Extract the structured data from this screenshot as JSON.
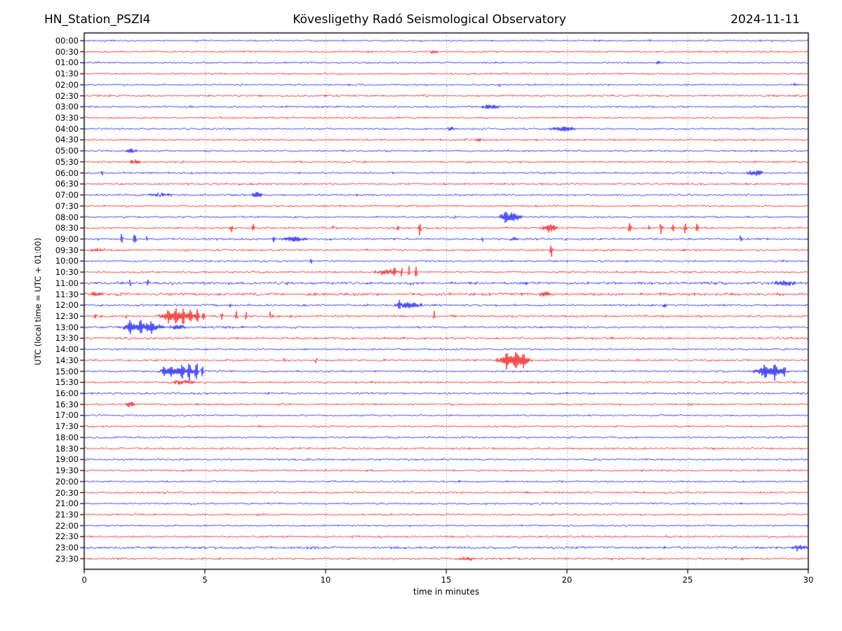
{
  "chart_data": {
    "type": "line",
    "subtype": "helicorder-seismogram",
    "title_left": "HN_Station_PSZI4",
    "title_center": "Kövesligethy Radó Seismological Observatory",
    "title_right": "2024-11-11",
    "xlabel": "time in minutes",
    "ylabel": "UTC (local time = UTC + 01:00)",
    "x_range": [
      0,
      30
    ],
    "x_ticks": [
      0,
      5,
      10,
      15,
      20,
      25,
      30
    ],
    "x_gridlines": [
      5,
      10,
      15,
      20,
      25
    ],
    "minutes_per_row": 30,
    "grid_on": true,
    "grid_color": "#777777",
    "axis_color": "#000000",
    "trace_colors": {
      "even_rows": "#0000ee",
      "odd_rows": "#ee0000"
    },
    "rows": [
      {
        "label": "00:00",
        "noise": 0.9
      },
      {
        "label": "00:30",
        "noise": 1.0
      },
      {
        "label": "01:00",
        "noise": 0.9
      },
      {
        "label": "01:30",
        "noise": 1.0
      },
      {
        "label": "02:00",
        "noise": 0.9
      },
      {
        "label": "02:30",
        "noise": 1.05
      },
      {
        "label": "03:00",
        "noise": 1.0
      },
      {
        "label": "03:30",
        "noise": 1.0
      },
      {
        "label": "04:00",
        "noise": 1.0
      },
      {
        "label": "04:30",
        "noise": 1.1
      },
      {
        "label": "05:00",
        "noise": 1.0
      },
      {
        "label": "05:30",
        "noise": 1.05
      },
      {
        "label": "06:00",
        "noise": 1.0
      },
      {
        "label": "06:30",
        "noise": 1.1
      },
      {
        "label": "07:00",
        "noise": 1.0
      },
      {
        "label": "07:30",
        "noise": 1.05
      },
      {
        "label": "08:00",
        "noise": 1.0
      },
      {
        "label": "08:30",
        "noise": 1.1
      },
      {
        "label": "09:00",
        "noise": 1.1
      },
      {
        "label": "09:30",
        "noise": 1.15
      },
      {
        "label": "10:00",
        "noise": 1.0
      },
      {
        "label": "10:30",
        "noise": 1.05
      },
      {
        "label": "11:00",
        "noise": 1.45
      },
      {
        "label": "11:30",
        "noise": 1.55
      },
      {
        "label": "12:00",
        "noise": 1.1
      },
      {
        "label": "12:30",
        "noise": 1.2
      },
      {
        "label": "13:00",
        "noise": 1.15
      },
      {
        "label": "13:30",
        "noise": 1.25
      },
      {
        "label": "14:00",
        "noise": 1.0
      },
      {
        "label": "14:30",
        "noise": 1.1
      },
      {
        "label": "15:00",
        "noise": 1.05
      },
      {
        "label": "15:30",
        "noise": 1.1
      },
      {
        "label": "16:00",
        "noise": 1.1
      },
      {
        "label": "16:30",
        "noise": 1.05
      },
      {
        "label": "17:00",
        "noise": 0.95
      },
      {
        "label": "17:30",
        "noise": 1.0
      },
      {
        "label": "18:00",
        "noise": 1.0
      },
      {
        "label": "18:30",
        "noise": 1.15
      },
      {
        "label": "19:00",
        "noise": 1.05
      },
      {
        "label": "19:30",
        "noise": 1.0
      },
      {
        "label": "20:00",
        "noise": 0.95
      },
      {
        "label": "20:30",
        "noise": 1.1
      },
      {
        "label": "21:00",
        "noise": 0.95
      },
      {
        "label": "21:30",
        "noise": 1.0
      },
      {
        "label": "22:00",
        "noise": 0.9
      },
      {
        "label": "22:30",
        "noise": 1.1
      },
      {
        "label": "23:00",
        "noise": 1.35
      },
      {
        "label": "23:30",
        "noise": 1.1
      }
    ],
    "events": [
      {
        "row": "00:30",
        "t": 14.5,
        "dur": 0.4,
        "amp": 2.2,
        "kind": "burst"
      },
      {
        "row": "01:00",
        "t": 23.8,
        "dur": 0.4,
        "amp": 2.0,
        "kind": "burst"
      },
      {
        "row": "02:00",
        "t": 17.2,
        "dur": 0.12,
        "amp": 3.5,
        "kind": "spike"
      },
      {
        "row": "02:00",
        "t": 29.5,
        "dur": 0.3,
        "amp": 2.0,
        "kind": "burst"
      },
      {
        "row": "03:00",
        "t": 16.85,
        "dur": 1.0,
        "amp": 3.5,
        "kind": "burst"
      },
      {
        "row": "04:00",
        "t": 15.2,
        "dur": 0.5,
        "amp": 2.5,
        "kind": "burst"
      },
      {
        "row": "04:00",
        "t": 19.8,
        "dur": 1.3,
        "amp": 3.5,
        "kind": "burst"
      },
      {
        "row": "04:30",
        "t": 16.3,
        "dur": 0.35,
        "amp": 2.0,
        "kind": "burst"
      },
      {
        "row": "05:00",
        "t": 1.95,
        "dur": 0.6,
        "amp": 3.0,
        "kind": "burst"
      },
      {
        "row": "05:30",
        "t": 2.1,
        "dur": 0.7,
        "amp": 2.5,
        "kind": "burst"
      },
      {
        "row": "06:00",
        "t": 0.75,
        "dur": 0.12,
        "amp": 6.0,
        "kind": "spike"
      },
      {
        "row": "06:00",
        "t": 27.8,
        "dur": 0.9,
        "amp": 3.5,
        "kind": "burst"
      },
      {
        "row": "07:00",
        "t": 3.2,
        "dur": 1.3,
        "amp": 2.0,
        "kind": "burst"
      },
      {
        "row": "07:00",
        "t": 7.15,
        "dur": 0.55,
        "amp": 5.0,
        "kind": "burst"
      },
      {
        "row": "08:00",
        "t": 15.35,
        "dur": 0.1,
        "amp": 4.0,
        "kind": "spike"
      },
      {
        "row": "08:00",
        "t": 17.65,
        "dur": 1.15,
        "amp": 6.0,
        "kind": "burst"
      },
      {
        "row": "08:00",
        "t": 17.45,
        "dur": 0.15,
        "amp": 8.0,
        "kind": "spike"
      },
      {
        "row": "08:30",
        "t": 6.1,
        "dur": 0.15,
        "amp": 6.0,
        "kind": "spike"
      },
      {
        "row": "08:30",
        "t": 7.0,
        "dur": 0.15,
        "amp": 6.0,
        "kind": "spike"
      },
      {
        "row": "08:30",
        "t": 10.3,
        "dur": 0.12,
        "amp": 3.0,
        "kind": "spike"
      },
      {
        "row": "08:30",
        "t": 13.0,
        "dur": 0.15,
        "amp": 5.0,
        "kind": "spike"
      },
      {
        "row": "08:30",
        "t": 13.9,
        "dur": 0.15,
        "amp": 11.0,
        "kind": "spike"
      },
      {
        "row": "08:30",
        "t": 19.3,
        "dur": 0.9,
        "amp": 5.0,
        "kind": "burst"
      },
      {
        "row": "08:30",
        "t": 22.6,
        "dur": 0.15,
        "amp": 10.0,
        "kind": "spike"
      },
      {
        "row": "08:30",
        "t": 23.4,
        "dur": 0.12,
        "amp": 4.0,
        "kind": "spike"
      },
      {
        "row": "08:30",
        "t": 23.9,
        "dur": 0.15,
        "amp": 9.0,
        "kind": "spike"
      },
      {
        "row": "08:30",
        "t": 24.4,
        "dur": 0.15,
        "amp": 9.0,
        "kind": "spike"
      },
      {
        "row": "08:30",
        "t": 24.9,
        "dur": 0.18,
        "amp": 11.0,
        "kind": "spike"
      },
      {
        "row": "08:30",
        "t": 25.4,
        "dur": 0.15,
        "amp": 9.0,
        "kind": "spike"
      },
      {
        "row": "09:00",
        "t": 0.6,
        "dur": 0.12,
        "amp": 3.0,
        "kind": "spike"
      },
      {
        "row": "09:00",
        "t": 1.1,
        "dur": 0.12,
        "amp": 4.0,
        "kind": "spike"
      },
      {
        "row": "09:00",
        "t": 1.55,
        "dur": 0.15,
        "amp": 8.0,
        "kind": "spike"
      },
      {
        "row": "09:00",
        "t": 2.1,
        "dur": 0.18,
        "amp": 11.0,
        "kind": "spike"
      },
      {
        "row": "09:00",
        "t": 2.6,
        "dur": 0.15,
        "amp": 6.0,
        "kind": "spike"
      },
      {
        "row": "09:00",
        "t": 7.85,
        "dur": 0.15,
        "amp": 7.0,
        "kind": "spike"
      },
      {
        "row": "09:00",
        "t": 8.7,
        "dur": 1.4,
        "amp": 3.5,
        "kind": "burst"
      },
      {
        "row": "09:00",
        "t": 16.5,
        "dur": 0.12,
        "amp": 5.0,
        "kind": "spike"
      },
      {
        "row": "09:00",
        "t": 17.8,
        "dur": 0.5,
        "amp": 2.5,
        "kind": "burst"
      },
      {
        "row": "09:00",
        "t": 27.2,
        "dur": 0.15,
        "amp": 7.0,
        "kind": "spike"
      },
      {
        "row": "09:30",
        "t": 0.5,
        "dur": 0.8,
        "amp": 2.0,
        "kind": "burst"
      },
      {
        "row": "09:30",
        "t": 19.35,
        "dur": 0.15,
        "amp": 14.0,
        "kind": "spike"
      },
      {
        "row": "10:00",
        "t": 9.4,
        "dur": 0.12,
        "amp": 3.0,
        "kind": "spike"
      },
      {
        "row": "10:30",
        "t": 12.5,
        "dur": 1.2,
        "amp": 3.5,
        "kind": "burst"
      },
      {
        "row": "10:30",
        "t": 12.85,
        "dur": 0.12,
        "amp": 8.0,
        "kind": "spike"
      },
      {
        "row": "10:30",
        "t": 13.15,
        "dur": 0.12,
        "amp": 10.0,
        "kind": "spike"
      },
      {
        "row": "10:30",
        "t": 13.45,
        "dur": 0.12,
        "amp": 11.0,
        "kind": "spike"
      },
      {
        "row": "10:30",
        "t": 13.75,
        "dur": 0.14,
        "amp": 13.0,
        "kind": "spike"
      },
      {
        "row": "11:00",
        "t": 1.9,
        "dur": 0.12,
        "amp": 5.0,
        "kind": "spike"
      },
      {
        "row": "11:00",
        "t": 2.65,
        "dur": 0.14,
        "amp": 7.0,
        "kind": "spike"
      },
      {
        "row": "11:00",
        "t": 29.0,
        "dur": 1.2,
        "amp": 3.5,
        "kind": "burst"
      },
      {
        "row": "11:30",
        "t": 0.5,
        "dur": 0.7,
        "amp": 2.8,
        "kind": "burst"
      },
      {
        "row": "11:30",
        "t": 19.1,
        "dur": 0.7,
        "amp": 2.2,
        "kind": "burst"
      },
      {
        "row": "12:00",
        "t": 6.05,
        "dur": 0.1,
        "amp": 3.0,
        "kind": "spike"
      },
      {
        "row": "12:00",
        "t": 13.4,
        "dur": 1.4,
        "amp": 4.0,
        "kind": "burst"
      },
      {
        "row": "12:00",
        "t": 13.05,
        "dur": 0.15,
        "amp": 5.0,
        "kind": "spike"
      },
      {
        "row": "12:00",
        "t": 24.1,
        "dur": 0.4,
        "amp": 2.5,
        "kind": "burst"
      },
      {
        "row": "12:30",
        "t": 0.45,
        "dur": 0.12,
        "amp": 6.0,
        "kind": "spike"
      },
      {
        "row": "12:30",
        "t": 1.75,
        "dur": 0.1,
        "amp": 3.0,
        "kind": "spike"
      },
      {
        "row": "12:30",
        "t": 3.9,
        "dur": 2.0,
        "amp": 6.0,
        "kind": "burst"
      },
      {
        "row": "12:30",
        "t": 3.5,
        "dur": 0.15,
        "amp": 8.0,
        "kind": "spike"
      },
      {
        "row": "12:30",
        "t": 3.8,
        "dur": 0.15,
        "amp": 10.0,
        "kind": "spike"
      },
      {
        "row": "12:30",
        "t": 4.1,
        "dur": 0.15,
        "amp": 11.0,
        "kind": "spike"
      },
      {
        "row": "12:30",
        "t": 4.4,
        "dur": 0.15,
        "amp": 10.0,
        "kind": "spike"
      },
      {
        "row": "12:30",
        "t": 4.7,
        "dur": 0.15,
        "amp": 11.0,
        "kind": "spike"
      },
      {
        "row": "12:30",
        "t": 4.95,
        "dur": 0.15,
        "amp": 9.0,
        "kind": "spike"
      },
      {
        "row": "12:30",
        "t": 5.7,
        "dur": 0.12,
        "amp": 8.0,
        "kind": "spike"
      },
      {
        "row": "12:30",
        "t": 6.3,
        "dur": 0.14,
        "amp": 8.0,
        "kind": "spike"
      },
      {
        "row": "12:30",
        "t": 6.7,
        "dur": 0.12,
        "amp": 7.0,
        "kind": "spike"
      },
      {
        "row": "12:30",
        "t": 7.7,
        "dur": 0.12,
        "amp": 8.0,
        "kind": "spike"
      },
      {
        "row": "12:30",
        "t": 14.5,
        "dur": 0.12,
        "amp": 7.0,
        "kind": "spike"
      },
      {
        "row": "13:00",
        "t": 2.4,
        "dur": 2.0,
        "amp": 6.0,
        "kind": "burst"
      },
      {
        "row": "13:00",
        "t": 1.9,
        "dur": 0.18,
        "amp": 9.0,
        "kind": "spike"
      },
      {
        "row": "13:00",
        "t": 2.35,
        "dur": 0.18,
        "amp": 10.0,
        "kind": "spike"
      },
      {
        "row": "13:00",
        "t": 2.8,
        "dur": 0.18,
        "amp": 9.0,
        "kind": "spike"
      },
      {
        "row": "13:00",
        "t": 3.8,
        "dur": 1.0,
        "amp": 3.0,
        "kind": "burst"
      },
      {
        "row": "13:30",
        "t": 6.1,
        "dur": 0.15,
        "amp": 2.5,
        "kind": "spike"
      },
      {
        "row": "14:30",
        "t": 8.3,
        "dur": 0.12,
        "amp": 4.0,
        "kind": "spike"
      },
      {
        "row": "14:30",
        "t": 9.6,
        "dur": 0.12,
        "amp": 4.0,
        "kind": "spike"
      },
      {
        "row": "14:30",
        "t": 17.8,
        "dur": 1.7,
        "amp": 7.0,
        "kind": "burst"
      },
      {
        "row": "14:30",
        "t": 17.5,
        "dur": 0.15,
        "amp": 9.0,
        "kind": "spike"
      },
      {
        "row": "14:30",
        "t": 17.9,
        "dur": 0.15,
        "amp": 10.0,
        "kind": "spike"
      },
      {
        "row": "14:30",
        "t": 18.2,
        "dur": 0.15,
        "amp": 9.0,
        "kind": "spike"
      },
      {
        "row": "15:00",
        "t": 3.9,
        "dur": 2.0,
        "amp": 5.0,
        "kind": "burst"
      },
      {
        "row": "15:00",
        "t": 3.3,
        "dur": 0.15,
        "amp": 6.0,
        "kind": "spike"
      },
      {
        "row": "15:00",
        "t": 3.6,
        "dur": 0.15,
        "amp": 8.0,
        "kind": "spike"
      },
      {
        "row": "15:00",
        "t": 4.05,
        "dur": 0.15,
        "amp": 12.0,
        "kind": "spike"
      },
      {
        "row": "15:00",
        "t": 4.35,
        "dur": 0.15,
        "amp": 14.0,
        "kind": "spike"
      },
      {
        "row": "15:00",
        "t": 4.65,
        "dur": 0.18,
        "amp": 16.0,
        "kind": "spike"
      },
      {
        "row": "15:00",
        "t": 4.9,
        "dur": 0.15,
        "amp": 13.0,
        "kind": "spike"
      },
      {
        "row": "15:00",
        "t": 28.4,
        "dur": 1.7,
        "amp": 6.0,
        "kind": "burst"
      },
      {
        "row": "15:00",
        "t": 28.2,
        "dur": 0.15,
        "amp": 10.0,
        "kind": "spike"
      },
      {
        "row": "15:00",
        "t": 28.6,
        "dur": 0.15,
        "amp": 11.0,
        "kind": "spike"
      },
      {
        "row": "15:00",
        "t": 29.0,
        "dur": 0.15,
        "amp": 9.0,
        "kind": "spike"
      },
      {
        "row": "15:30",
        "t": 4.1,
        "dur": 1.5,
        "amp": 3.0,
        "kind": "burst"
      },
      {
        "row": "16:30",
        "t": 1.9,
        "dur": 0.55,
        "amp": 4.0,
        "kind": "burst"
      },
      {
        "row": "23:00",
        "t": 29.6,
        "dur": 0.8,
        "amp": 3.0,
        "kind": "burst"
      },
      {
        "row": "23:30",
        "t": 15.9,
        "dur": 1.2,
        "amp": 2.0,
        "kind": "burst"
      }
    ]
  }
}
